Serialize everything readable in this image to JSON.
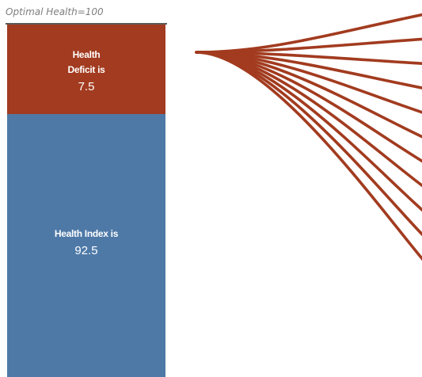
{
  "chart_data": {
    "type": "stacked-bar",
    "title": "Optimal Health=100",
    "total": 100,
    "segments": [
      {
        "label_lines": [
          "Health",
          "Deficit is"
        ],
        "value": 7.5,
        "value_text": "7.5",
        "color": "#a23b1f"
      },
      {
        "label_lines": [
          "Health Index is"
        ],
        "value": 92.5,
        "value_text": "92.5",
        "color": "#4e79a7"
      }
    ],
    "connector": {
      "count": 11,
      "color": "#a23b1f",
      "direction": "fans out to the right"
    }
  }
}
